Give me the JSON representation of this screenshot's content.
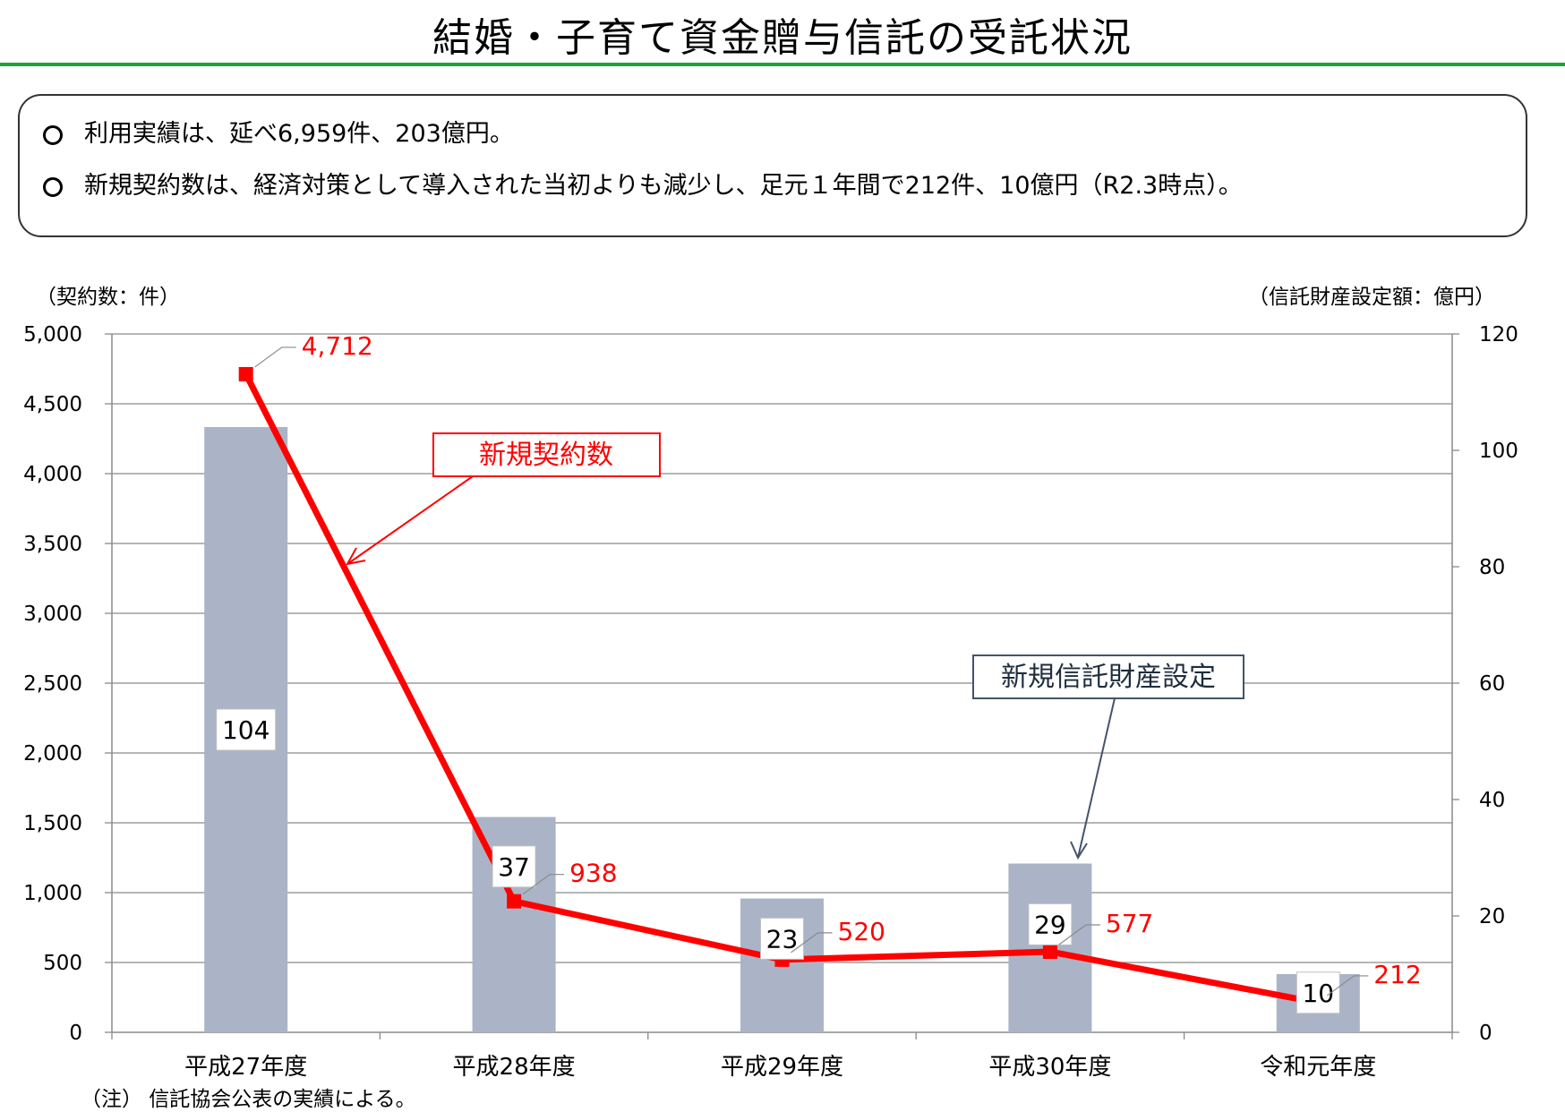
{
  "title": "結婚・子育て資金贈与信託の受託状況",
  "summary": [
    "利用実績は、延べ6,959件、203億円。",
    "新規契約数は、経済対策として導入された当初よりも減少し、足元１年間で212件、10億円（R2.3時点）。"
  ],
  "chart_data": {
    "type": "bar",
    "categories": [
      "平成27年度",
      "平成28年度",
      "平成29年度",
      "平成30年度",
      "令和元年度"
    ],
    "left_axis": {
      "unit_label": "（契約数：件）",
      "ticks": [
        0,
        500,
        1000,
        1500,
        2000,
        2500,
        3000,
        3500,
        4000,
        4500,
        5000
      ],
      "tick_labels": [
        "0",
        "500",
        "1,000",
        "1,500",
        "2,000",
        "2,500",
        "3,000",
        "3,500",
        "4,000",
        "4,500",
        "5,000"
      ],
      "range": [
        0,
        5000
      ]
    },
    "right_axis": {
      "unit_label": "（信託財産設定額：億円）",
      "ticks": [
        0,
        20,
        40,
        60,
        80,
        100,
        120
      ],
      "tick_labels": [
        "0",
        "20",
        "40",
        "60",
        "80",
        "100",
        "120"
      ],
      "range": [
        0,
        120
      ]
    },
    "series": [
      {
        "name": "新規信託財産設定",
        "type": "bar",
        "axis": "right",
        "color": "#aab4c6",
        "values": [
          104,
          37,
          23,
          29,
          10
        ],
        "labels": [
          "104",
          "37",
          "23",
          "29",
          "10"
        ]
      },
      {
        "name": "新規契約数",
        "type": "line",
        "axis": "left",
        "color": "#ff0000",
        "values": [
          4712,
          938,
          520,
          577,
          212
        ],
        "labels": [
          "4,712",
          "938",
          "520",
          "577",
          "212"
        ]
      }
    ],
    "grid": true
  },
  "footnote": "（注） 信託協会公表の実績による。"
}
